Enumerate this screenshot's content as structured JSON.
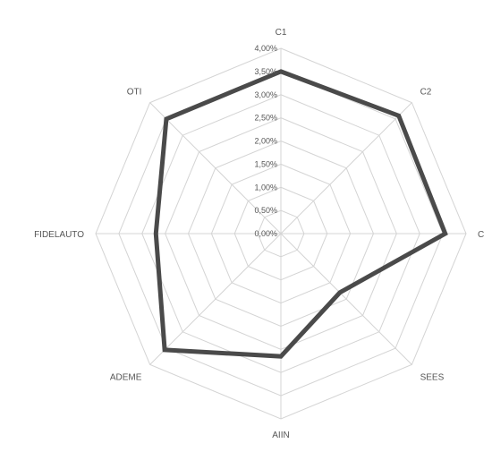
{
  "chart_data": {
    "type": "radar",
    "categories": [
      "C1",
      "C2",
      "C",
      "SEES",
      "AIIN",
      "ADEME",
      "FIDELAUTO",
      "OTI"
    ],
    "ticks": [
      "0,00%",
      "0,50%",
      "1,00%",
      "1,50%",
      "2,00%",
      "2,50%",
      "3,00%",
      "3,50%",
      "4,00%"
    ],
    "range": [
      0,
      4.0
    ],
    "series": [
      {
        "values": [
          3.5,
          3.6,
          3.55,
          1.8,
          2.65,
          3.55,
          2.7,
          3.5
        ],
        "color": "#4a4a4a"
      }
    ],
    "grid": true
  }
}
